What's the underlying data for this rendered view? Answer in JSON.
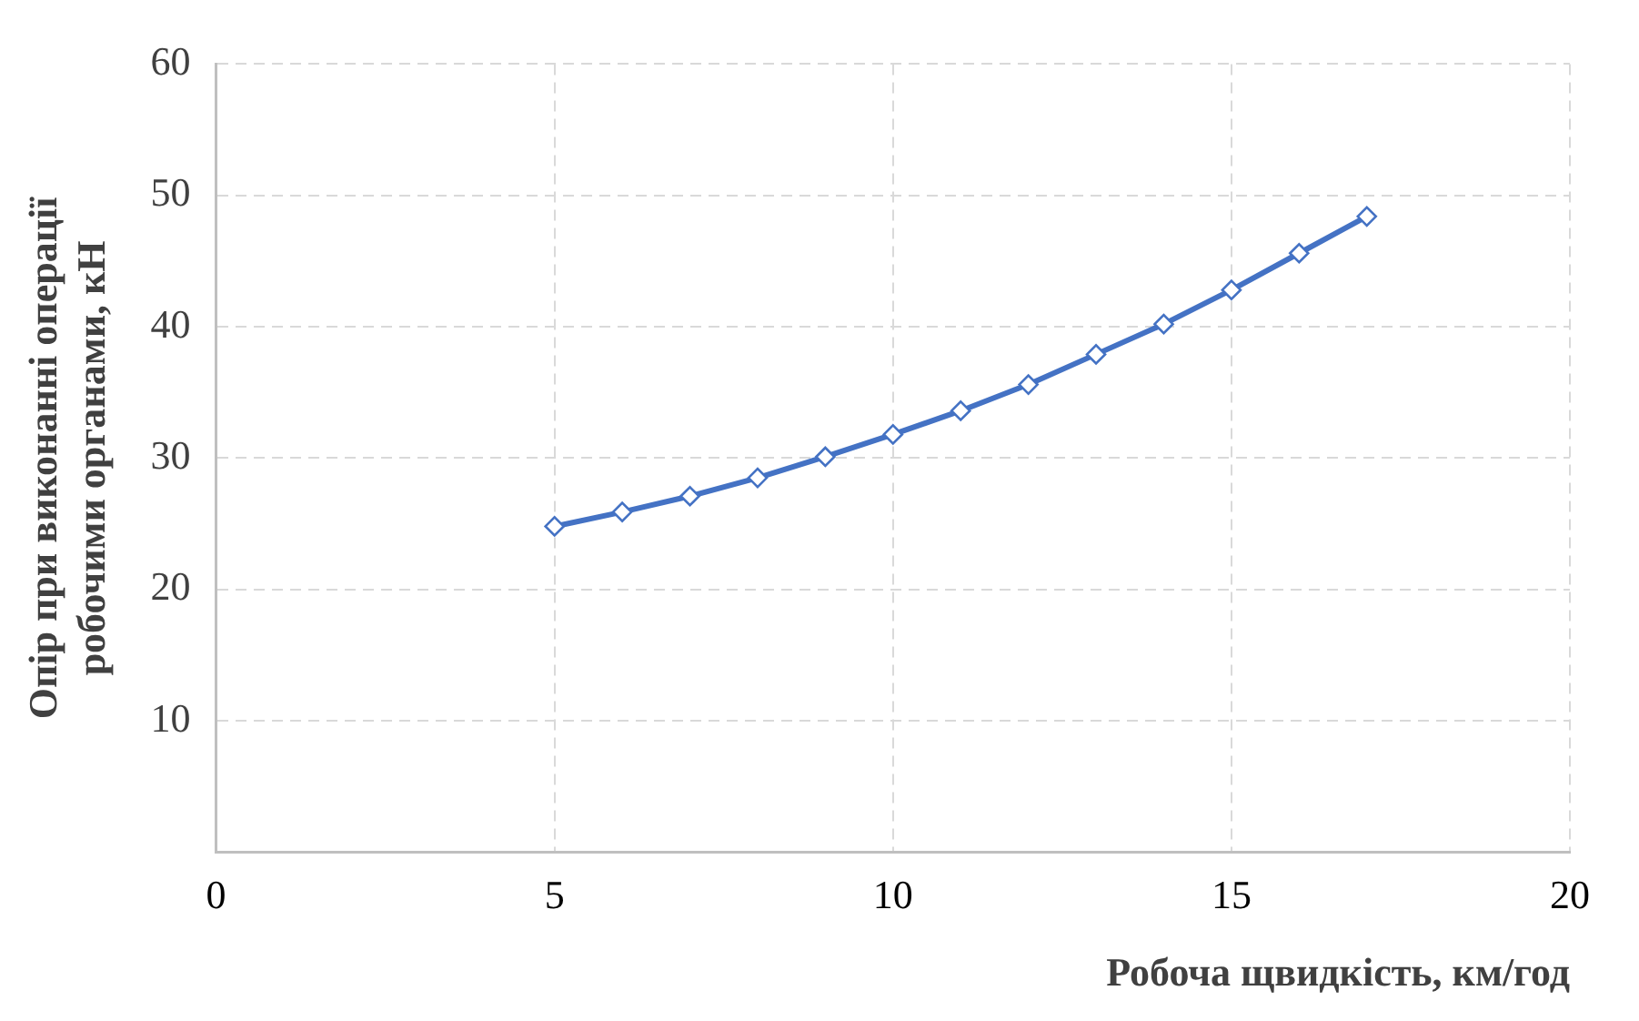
{
  "chart_data": {
    "type": "line",
    "xlabel": "Робоча щвидкість, км/год",
    "ylabel": "Опір при виконанні операції\nробочими органами, кН",
    "x": [
      5,
      6,
      7,
      8,
      9,
      10,
      11,
      12,
      13,
      14,
      15,
      16,
      17
    ],
    "series": [
      {
        "color": "#4472c4",
        "values": [
          24.8,
          25.9,
          27.1,
          28.5,
          30.1,
          31.8,
          33.6,
          35.6,
          37.9,
          40.2,
          42.8,
          45.6,
          48.4
        ]
      }
    ],
    "xlim": [
      0,
      20
    ],
    "xticks": [
      0,
      5,
      10,
      15,
      20
    ],
    "ylim": [
      0,
      60
    ],
    "yticks": [
      {
        "value": 0,
        "label": null
      },
      10,
      20,
      30,
      40,
      50,
      60
    ],
    "grid": true,
    "marker": "diamond",
    "line_style": "solid",
    "legend": false
  }
}
